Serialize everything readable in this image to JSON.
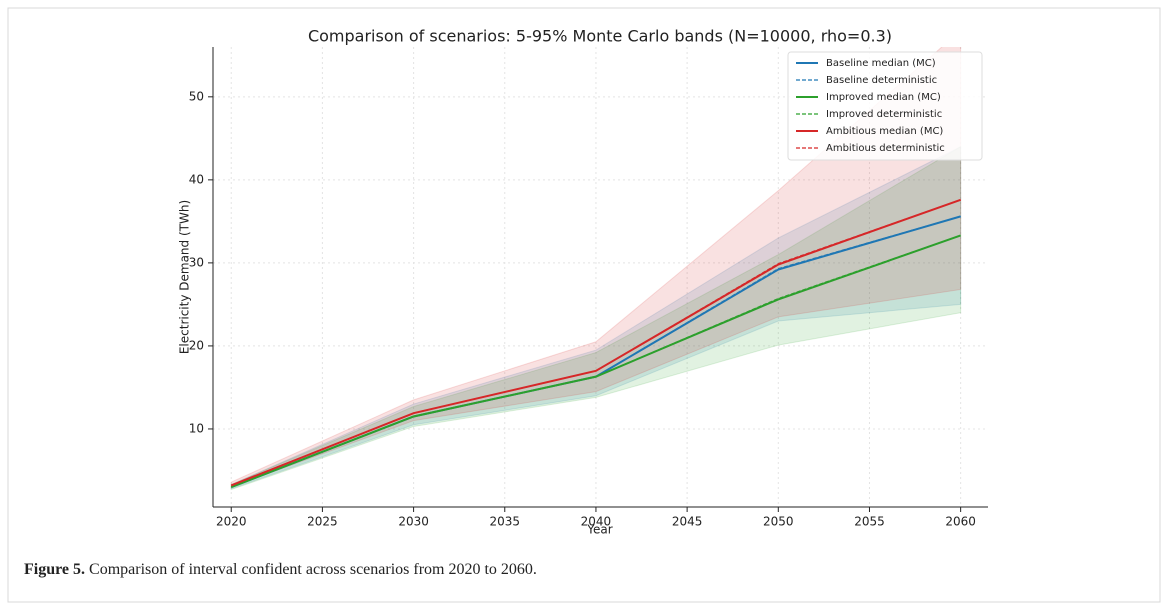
{
  "chart_data": {
    "type": "line",
    "title": "Comparison of scenarios: 5-95% Monte Carlo bands (N=10000, rho=0.3)",
    "xlabel": "Year",
    "ylabel": "Electricity Demand (TWh)",
    "x": [
      2020,
      2030,
      2040,
      2050,
      2060
    ],
    "xlim": [
      2019,
      2061.5
    ],
    "xticks": [
      2020,
      2025,
      2030,
      2035,
      2040,
      2045,
      2050,
      2055,
      2060
    ],
    "ylim": [
      0.6,
      56
    ],
    "yticks": [
      10,
      20,
      30,
      40,
      50
    ],
    "grid": true,
    "legend": "upper right",
    "series": [
      {
        "name": "Baseline median (MC)",
        "color": "#1f77b4",
        "dashed": false,
        "values": [
          3.0,
          11.5,
          16.3,
          29.2,
          35.6
        ],
        "band": {
          "lower": [
            2.8,
            10.5,
            14.0,
            23.0,
            25.0
          ],
          "upper": [
            3.3,
            13.0,
            19.5,
            33.0,
            44.0
          ]
        }
      },
      {
        "name": "Baseline deterministic",
        "color": "#1f77b4",
        "dashed": true,
        "values": [
          3.0,
          11.5,
          16.3,
          29.3,
          35.6
        ]
      },
      {
        "name": "Improved median (MC)",
        "color": "#2ca02c",
        "dashed": false,
        "values": [
          3.0,
          11.5,
          16.3,
          25.6,
          33.3
        ],
        "band": {
          "lower": [
            2.7,
            10.3,
            13.8,
            20.1,
            24.0
          ],
          "upper": [
            3.3,
            12.7,
            19.2,
            31.0,
            44.0
          ]
        }
      },
      {
        "name": "Improved deterministic",
        "color": "#2ca02c",
        "dashed": true,
        "values": [
          3.0,
          11.5,
          16.3,
          25.7,
          33.3
        ]
      },
      {
        "name": "Ambitious median (MC)",
        "color": "#d62728",
        "dashed": false,
        "values": [
          3.2,
          11.9,
          17.0,
          29.8,
          37.6
        ],
        "band": {
          "lower": [
            3.0,
            11.0,
            14.5,
            23.5,
            26.8
          ],
          "upper": [
            3.6,
            13.5,
            20.5,
            38.7,
            58.0
          ]
        }
      },
      {
        "name": "Ambitious deterministic",
        "color": "#d62728",
        "dashed": true,
        "values": [
          3.2,
          11.9,
          17.0,
          29.9,
          37.6
        ]
      }
    ]
  },
  "caption": {
    "label": "Figure 5.",
    "text": " Comparison of interval confident across scenarios from 2020 to 2060."
  }
}
